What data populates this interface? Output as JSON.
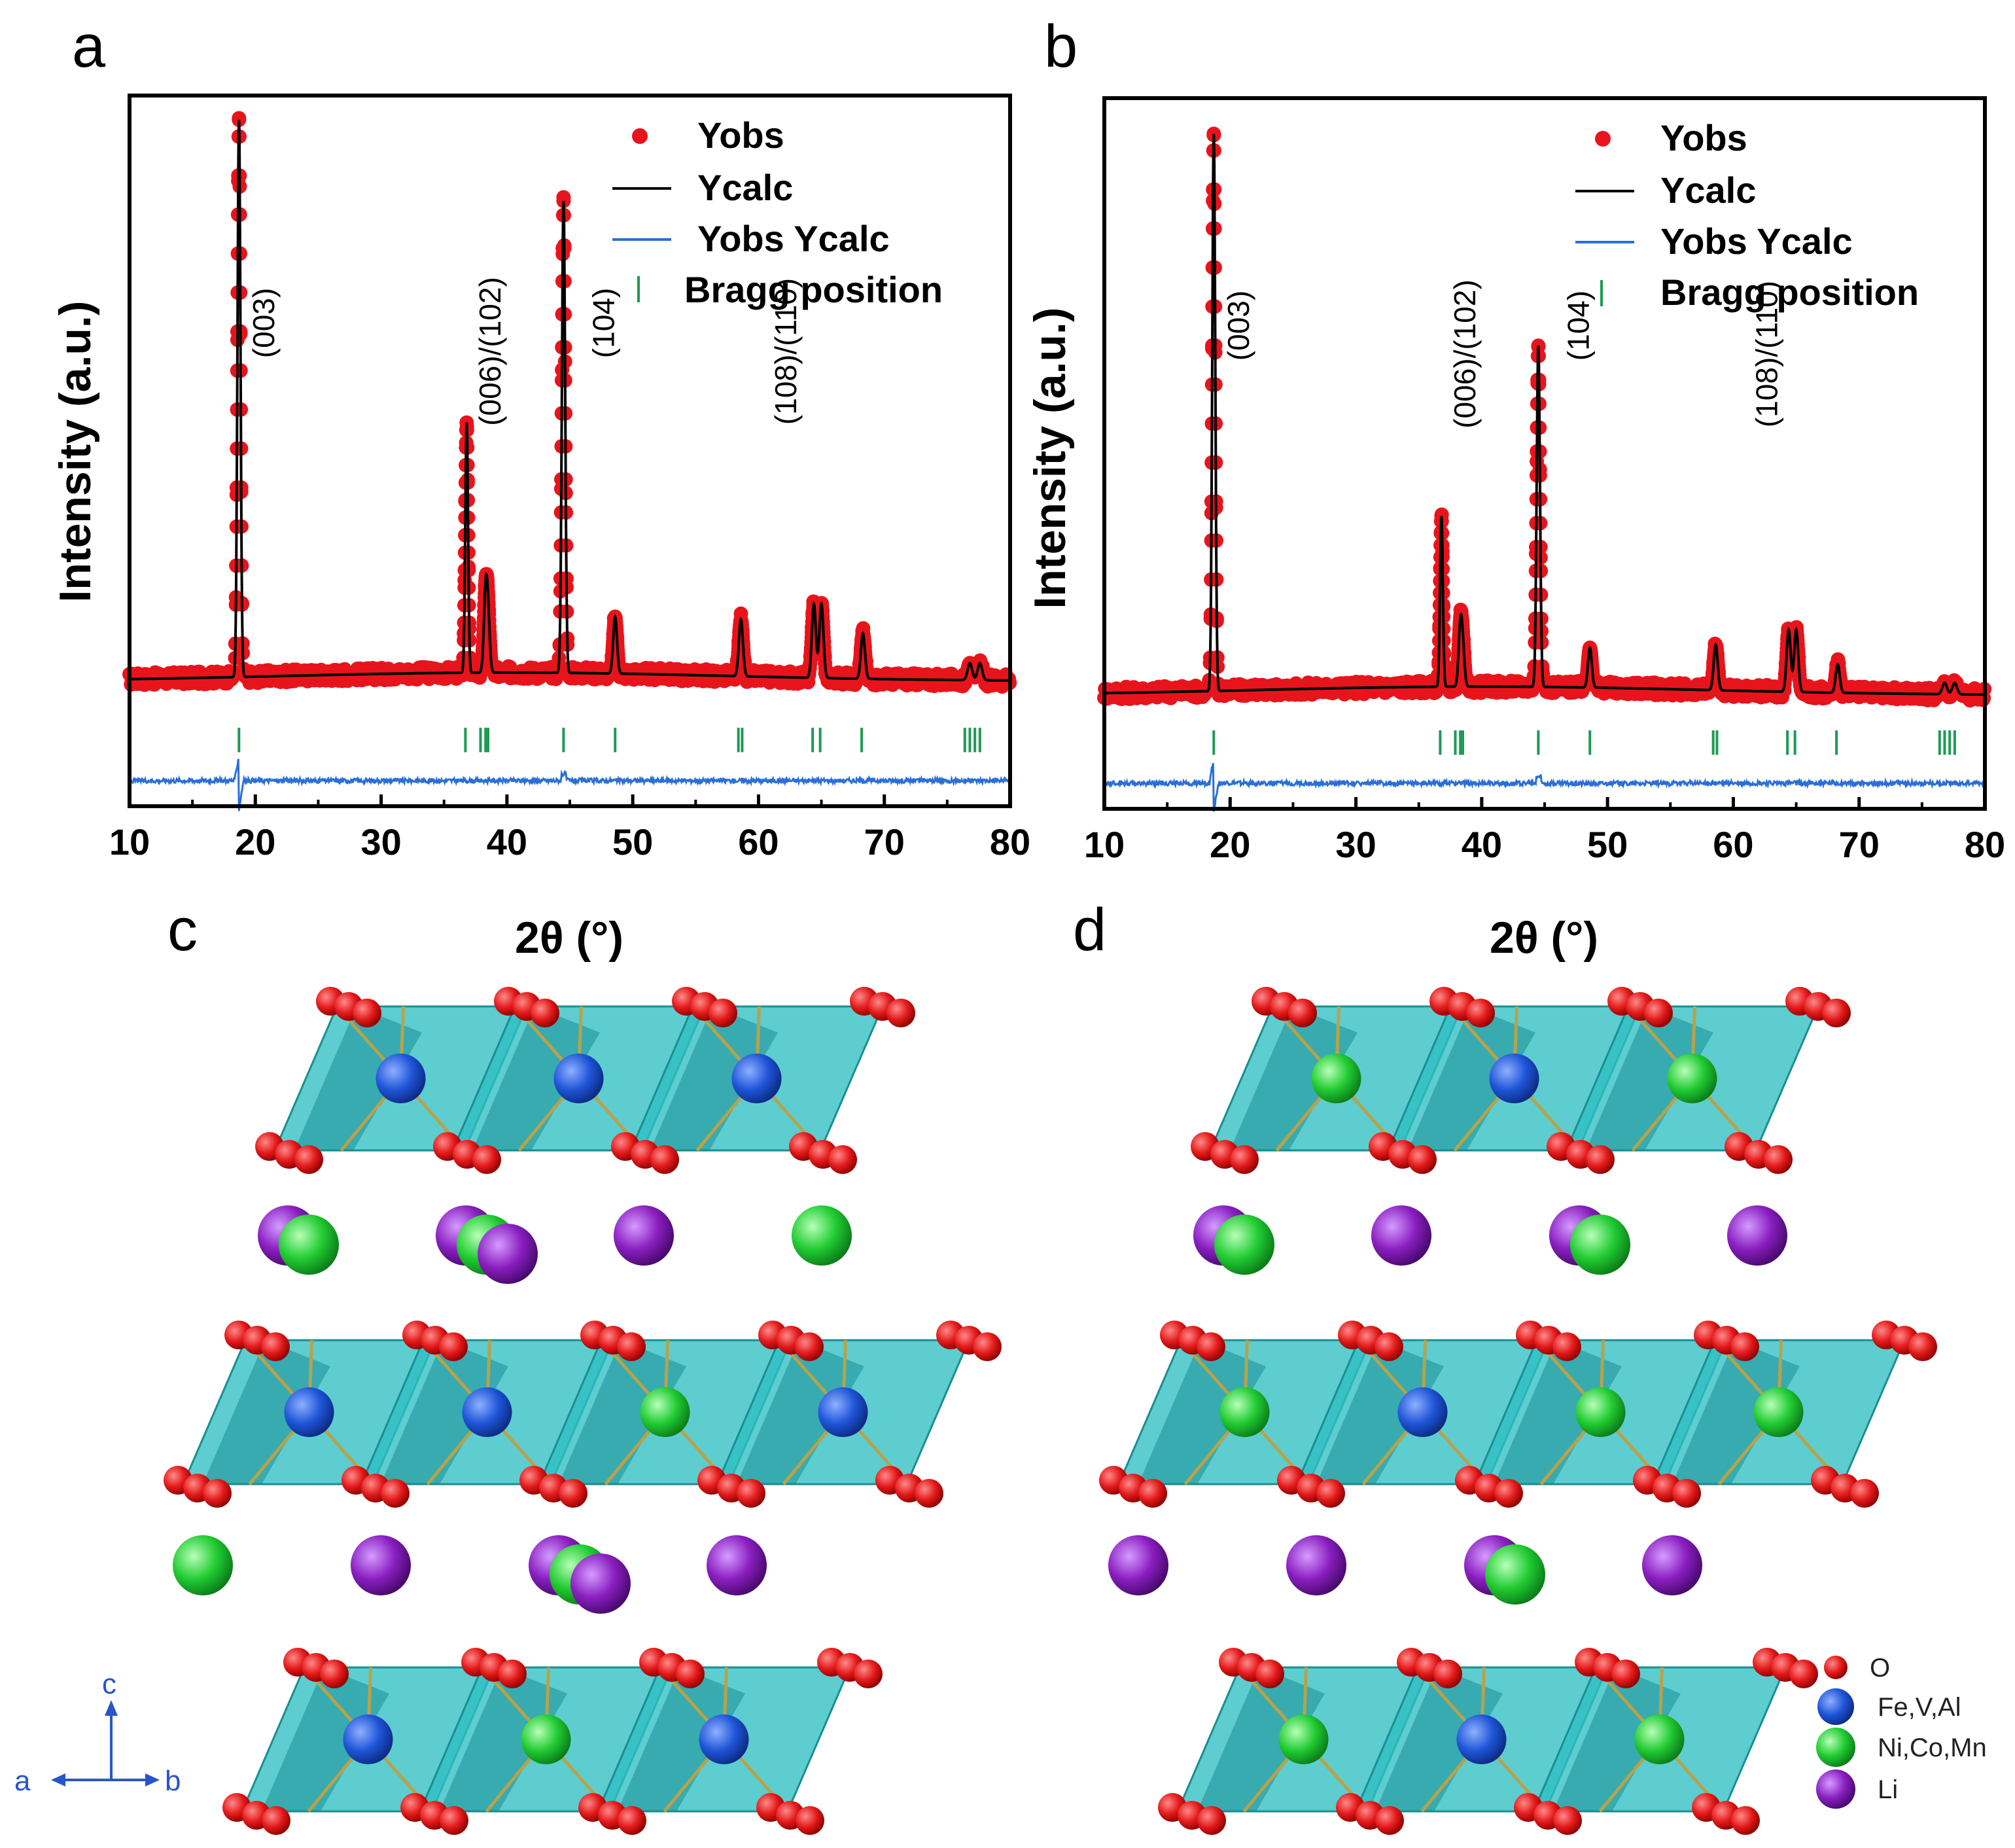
{
  "colors": {
    "yobs": "#e8141c",
    "ycalc": "#000000",
    "diff": "#2a6fd6",
    "bragg": "#1f9a55",
    "octahedron": "#2fbfc3",
    "oxygen": "#e31a1a",
    "fevaal": "#1f55d8",
    "nicomn": "#22cc33",
    "li": "#8a1fc0",
    "bond": "#b8a24a",
    "axes_indicator": "#2a55c8"
  },
  "panels": {
    "a": "a",
    "b": "b",
    "c": "c",
    "d": "d"
  },
  "chart_data": [
    {
      "type": "line",
      "panel": "a",
      "xlabel": "2θ (°)",
      "ylabel": "Intensity (a.u.)",
      "xlim": [
        10,
        80
      ],
      "xticks": [
        "10",
        "20",
        "30",
        "40",
        "50",
        "60",
        "70",
        "80"
      ],
      "ylim": [
        -0.2,
        1.05
      ],
      "legend": [
        "Yobs",
        "Ycalc",
        "Yobs Ycalc",
        "Bragg position"
      ],
      "legend_position": "top-right",
      "baseline": 0.02,
      "peaks": [
        {
          "pos": 18.7,
          "height": 0.98,
          "width": 0.12
        },
        {
          "pos": 36.8,
          "height": 0.44,
          "width": 0.11
        },
        {
          "pos": 38.3,
          "height": 0.13,
          "width": 0.14
        },
        {
          "pos": 38.5,
          "height": 0.09,
          "width": 0.14
        },
        {
          "pos": 44.5,
          "height": 0.83,
          "width": 0.13
        },
        {
          "pos": 48.6,
          "height": 0.1,
          "width": 0.15
        },
        {
          "pos": 58.6,
          "height": 0.1,
          "width": 0.16
        },
        {
          "pos": 64.4,
          "height": 0.13,
          "width": 0.16
        },
        {
          "pos": 65.0,
          "height": 0.13,
          "width": 0.16
        },
        {
          "pos": 68.3,
          "height": 0.08,
          "width": 0.16
        },
        {
          "pos": 76.8,
          "height": 0.03,
          "width": 0.18
        },
        {
          "pos": 77.6,
          "height": 0.03,
          "width": 0.18
        }
      ],
      "bragg_positions": [
        18.7,
        36.7,
        37.9,
        38.3,
        38.5,
        44.5,
        48.6,
        58.4,
        58.7,
        64.3,
        64.9,
        68.2,
        76.4,
        76.8,
        77.2,
        77.6
      ],
      "annotations": [
        {
          "text": "(003)",
          "x": 21.5
        },
        {
          "text": "(006)/(102)",
          "x": 39.5
        },
        {
          "text": "(104)",
          "x": 48.5
        },
        {
          "text": "(108)/(110)",
          "x": 63.0
        }
      ]
    },
    {
      "type": "line",
      "panel": "b",
      "xlabel": "2θ (°)",
      "ylabel": "Intensity (a.u.)",
      "xlim": [
        10,
        80
      ],
      "xticks": [
        "10",
        "20",
        "30",
        "40",
        "50",
        "60",
        "70",
        "80"
      ],
      "ylim": [
        -0.2,
        1.05
      ],
      "legend": [
        "Yobs",
        "Ycalc",
        "Yobs Ycalc",
        "Bragg position"
      ],
      "legend_position": "top-right",
      "baseline": 0.0,
      "peaks": [
        {
          "pos": 18.7,
          "height": 0.98,
          "width": 0.12
        },
        {
          "pos": 36.8,
          "height": 0.3,
          "width": 0.11
        },
        {
          "pos": 38.3,
          "height": 0.1,
          "width": 0.14
        },
        {
          "pos": 38.5,
          "height": 0.06,
          "width": 0.14
        },
        {
          "pos": 44.5,
          "height": 0.6,
          "width": 0.13
        },
        {
          "pos": 48.6,
          "height": 0.07,
          "width": 0.15
        },
        {
          "pos": 58.6,
          "height": 0.08,
          "width": 0.16
        },
        {
          "pos": 64.4,
          "height": 0.11,
          "width": 0.16
        },
        {
          "pos": 65.0,
          "height": 0.11,
          "width": 0.16
        },
        {
          "pos": 68.3,
          "height": 0.05,
          "width": 0.16
        },
        {
          "pos": 76.8,
          "height": 0.02,
          "width": 0.18
        },
        {
          "pos": 77.6,
          "height": 0.02,
          "width": 0.18
        }
      ],
      "bragg_positions": [
        18.7,
        36.7,
        37.9,
        38.3,
        38.5,
        44.5,
        48.6,
        58.4,
        58.7,
        64.3,
        64.9,
        68.2,
        76.4,
        76.8,
        77.2,
        77.6
      ],
      "annotations": [
        {
          "text": "(003)",
          "x": 21.5
        },
        {
          "text": "(006)/(102)",
          "x": 39.5
        },
        {
          "text": "(104)",
          "x": 48.5
        },
        {
          "text": "(108)/(110)",
          "x": 63.5
        }
      ]
    }
  ],
  "structure": {
    "legend": [
      {
        "label": "O",
        "color": "#e31a1a"
      },
      {
        "label": "Fe,V,Al",
        "color": "#1f55d8"
      },
      {
        "label": "Ni,Co,Mn",
        "color": "#22cc33"
      },
      {
        "label": "Li",
        "color": "#8a1fc0"
      }
    ],
    "axes": {
      "a": "a",
      "b": "b",
      "c": "c"
    },
    "panel_c": {
      "layer1_centers": [
        "fevaal",
        "fevaal",
        "fevaal"
      ],
      "row1_li": [
        "li+nicomn",
        "li+nicomn+li",
        "li",
        "nicomn"
      ],
      "layer2_centers": [
        "fevaal",
        "fevaal",
        "nicomn",
        "fevaal"
      ],
      "row2_li": [
        "nicomn",
        "li",
        "li+nicomn+li",
        "li"
      ],
      "layer3_centers": [
        "fevaal",
        "nicomn",
        "fevaal"
      ]
    },
    "panel_d": {
      "layer1_centers": [
        "nicomn",
        "fevaal",
        "nicomn"
      ],
      "row1_li": [
        "li+nicomn",
        "li",
        "li+nicomn",
        "li"
      ],
      "layer2_centers": [
        "nicomn",
        "fevaal",
        "nicomn",
        "nicomn"
      ],
      "row2_li": [
        "li",
        "li",
        "li+nicomn",
        "li"
      ],
      "layer3_centers": [
        "nicomn",
        "fevaal",
        "nicomn"
      ]
    }
  }
}
